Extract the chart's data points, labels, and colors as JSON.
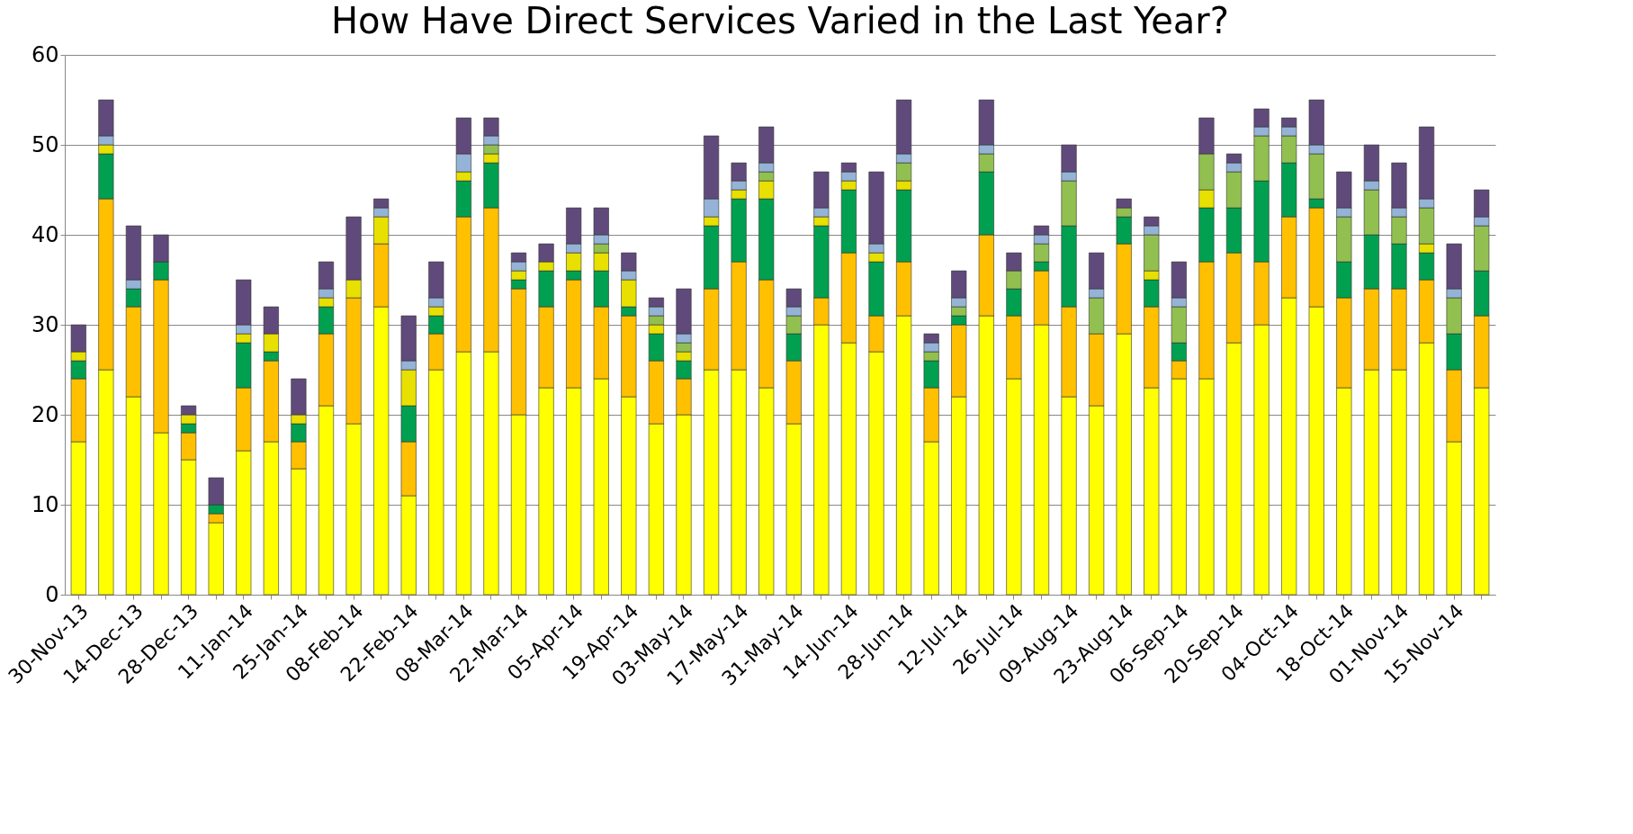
{
  "chart_data": {
    "type": "bar",
    "title": "How Have Direct Services Varied in the Last Year?",
    "stacked": true,
    "grid": "y",
    "legend": false,
    "categories": [
      "30-Nov-13",
      null,
      "14-Dec-13",
      null,
      "28-Dec-13",
      null,
      "11-Jan-14",
      null,
      "25-Jan-14",
      null,
      "08-Feb-14",
      null,
      "22-Feb-14",
      null,
      "08-Mar-14",
      null,
      "22-Mar-14",
      null,
      "05-Apr-14",
      null,
      "19-Apr-14",
      null,
      "03-May-14",
      null,
      "17-May-14",
      null,
      "31-May-14",
      null,
      "14-Jun-14",
      null,
      "28-Jun-14",
      null,
      "12-Jul-14",
      null,
      "26-Jul-14",
      null,
      "09-Aug-14",
      null,
      "23-Aug-14",
      null,
      "06-Sep-14",
      null,
      "20-Sep-14",
      null,
      "04-Oct-14",
      null,
      "18-Oct-14",
      null,
      "01-Nov-14",
      null,
      "15-Nov-14",
      null
    ],
    "ylim": [
      0,
      60
    ],
    "yticks": [
      0,
      10,
      20,
      30,
      40,
      50,
      60
    ],
    "series": [
      {
        "color": "#ffff00",
        "values": [
          17,
          25,
          22,
          18,
          15,
          8,
          16,
          17,
          14,
          21,
          19,
          32,
          11,
          25,
          27,
          27,
          20,
          23,
          23,
          24,
          22,
          19,
          20,
          25,
          25,
          23,
          19,
          30,
          28,
          27,
          31,
          17,
          22,
          31,
          24,
          30,
          22,
          21,
          29,
          23,
          24,
          24,
          28,
          30,
          33,
          32,
          23,
          25,
          25,
          28,
          17,
          23
        ]
      },
      {
        "color": "#ffc000",
        "values": [
          7,
          19,
          10,
          17,
          3,
          1,
          7,
          9,
          3,
          8,
          14,
          7,
          6,
          4,
          15,
          16,
          14,
          9,
          12,
          8,
          9,
          7,
          4,
          9,
          12,
          12,
          7,
          3,
          10,
          4,
          6,
          6,
          8,
          9,
          7,
          6,
          10,
          8,
          10,
          9,
          2,
          13,
          10,
          7,
          9,
          11,
          10,
          9,
          9,
          7,
          8,
          8
        ]
      },
      {
        "color": "#00a050",
        "values": [
          2,
          5,
          2,
          2,
          1,
          1,
          5,
          1,
          2,
          3,
          null,
          null,
          4,
          2,
          4,
          5,
          1,
          4,
          1,
          4,
          1,
          3,
          2,
          7,
          7,
          9,
          3,
          8,
          7,
          6,
          8,
          3,
          1,
          7,
          3,
          1,
          9,
          null,
          3,
          3,
          2,
          6,
          5,
          9,
          6,
          1,
          4,
          6,
          5,
          3,
          4,
          5
        ]
      },
      {
        "color": "#e8e000",
        "values": [
          1,
          1,
          null,
          null,
          1,
          null,
          1,
          2,
          1,
          1,
          2,
          3,
          4,
          1,
          1,
          1,
          1,
          1,
          2,
          2,
          3,
          1,
          1,
          1,
          1,
          2,
          null,
          1,
          1,
          1,
          1,
          null,
          null,
          null,
          null,
          null,
          null,
          null,
          null,
          1,
          null,
          2,
          null,
          null,
          null,
          null,
          null,
          null,
          null,
          1,
          null,
          null
        ]
      },
      {
        "color": "#92c050",
        "values": [
          null,
          null,
          null,
          null,
          null,
          null,
          null,
          null,
          null,
          null,
          null,
          null,
          null,
          null,
          null,
          1,
          null,
          null,
          null,
          1,
          null,
          1,
          1,
          null,
          null,
          1,
          2,
          null,
          null,
          null,
          2,
          1,
          1,
          2,
          2,
          2,
          5,
          4,
          1,
          4,
          4,
          4,
          4,
          5,
          3,
          5,
          5,
          5,
          3,
          4,
          4,
          5
        ]
      },
      {
        "color": "#95b3d7",
        "values": [
          null,
          1,
          1,
          null,
          null,
          null,
          1,
          null,
          null,
          1,
          null,
          1,
          1,
          1,
          2,
          1,
          1,
          null,
          1,
          1,
          1,
          1,
          1,
          2,
          1,
          1,
          1,
          1,
          1,
          1,
          1,
          1,
          1,
          1,
          null,
          1,
          1,
          1,
          null,
          1,
          1,
          null,
          1,
          1,
          1,
          1,
          1,
          1,
          1,
          1,
          1,
          1
        ]
      },
      {
        "color": "#604a7b",
        "values": [
          3,
          4,
          6,
          3,
          1,
          3,
          5,
          3,
          4,
          3,
          7,
          1,
          5,
          4,
          4,
          2,
          1,
          2,
          4,
          3,
          2,
          1,
          5,
          7,
          2,
          4,
          2,
          4,
          1,
          8,
          6,
          1,
          3,
          5,
          2,
          1,
          3,
          4,
          1,
          1,
          4,
          4,
          1,
          2,
          1,
          5,
          4,
          4,
          5,
          8,
          5,
          3
        ]
      }
    ]
  }
}
